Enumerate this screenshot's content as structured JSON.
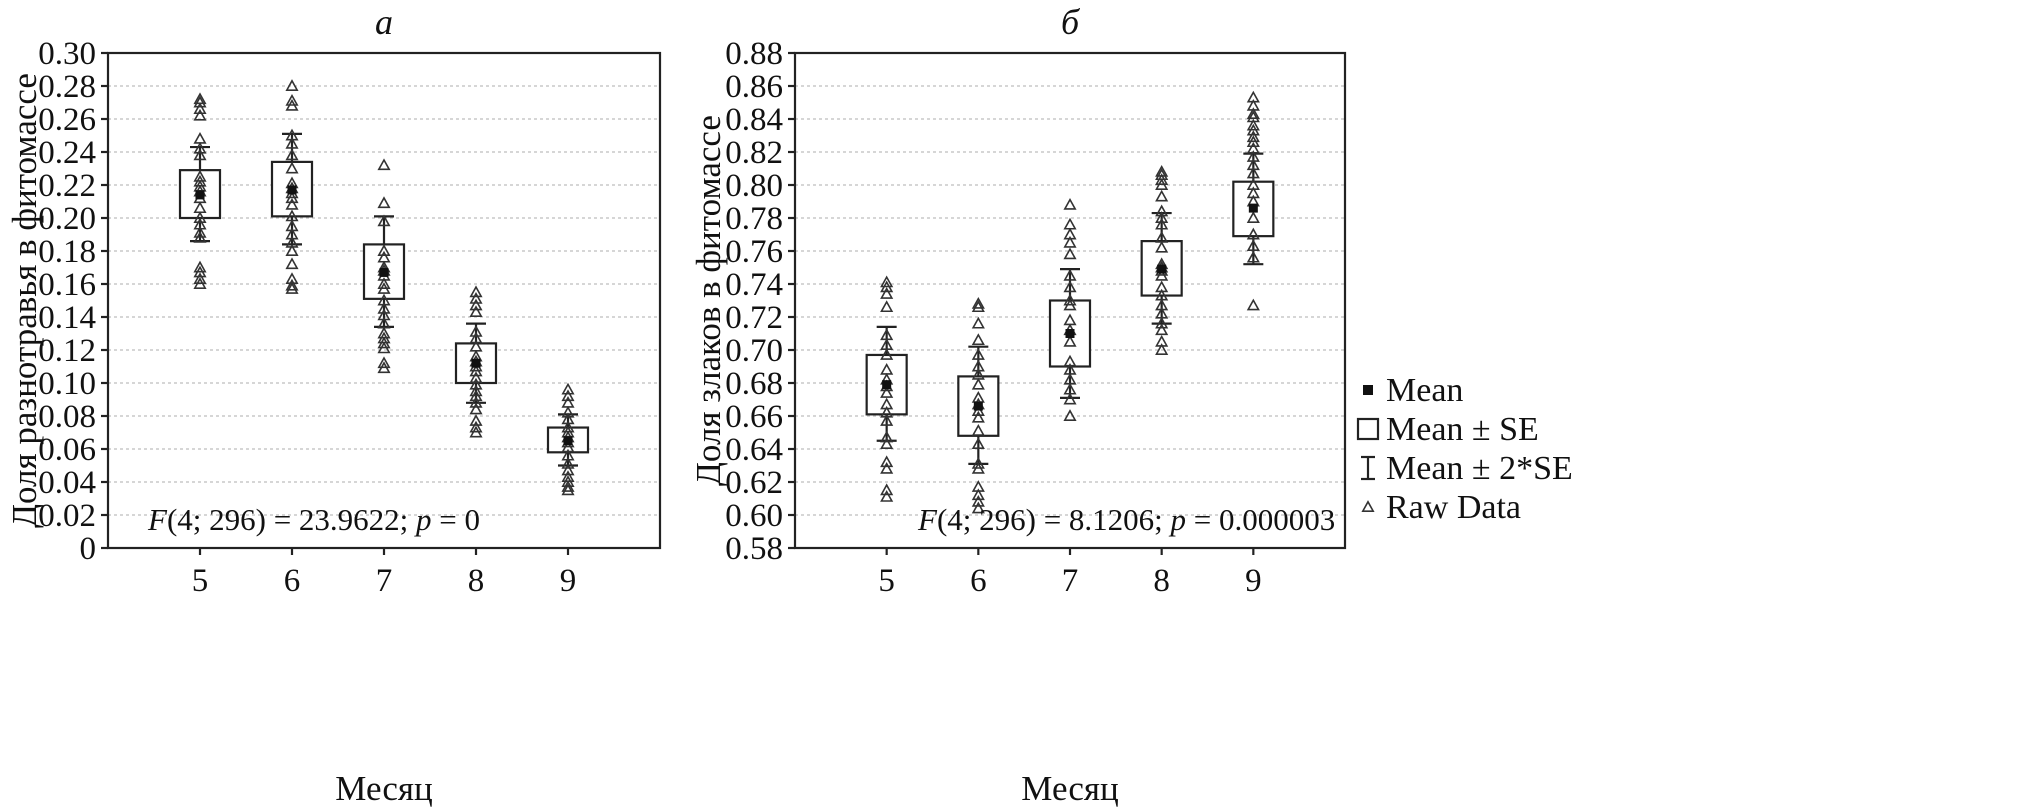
{
  "chart_data": [
    {
      "type": "boxplot",
      "panel_id": "a",
      "title": "а",
      "xlabel": "Месяц",
      "ylabel": "Доля разнотравья в фитомассе",
      "ylim": [
        0,
        0.3
      ],
      "xlim": [
        4,
        10
      ],
      "yticks": [
        0,
        0.02,
        0.04,
        0.06,
        0.08,
        0.1,
        0.12,
        0.14,
        0.16,
        0.18,
        0.2,
        0.22,
        0.24,
        0.26,
        0.28,
        0.3
      ],
      "ytick_labels": [
        "0",
        "0.02",
        "0.04",
        "0.06",
        "0.08",
        "0.10",
        "0.12",
        "0.14",
        "0.16",
        "0.18",
        "0.20",
        "0.22",
        "0.24",
        "0.26",
        "0.28",
        "0.30"
      ],
      "categories": [
        "5",
        "6",
        "7",
        "8",
        "9"
      ],
      "groups": [
        {
          "x": 5,
          "mean": 0.214,
          "se_lo": 0.2,
          "se_hi": 0.229,
          "se2_lo": 0.186,
          "se2_hi": 0.243,
          "raw": [
            0.272,
            0.27,
            0.266,
            0.262,
            0.248,
            0.242,
            0.238,
            0.225,
            0.222,
            0.219,
            0.216,
            0.212,
            0.206,
            0.2,
            0.196,
            0.191,
            0.188,
            0.17,
            0.167,
            0.163,
            0.16
          ]
        },
        {
          "x": 6,
          "mean": 0.217,
          "se_lo": 0.201,
          "se_hi": 0.234,
          "se2_lo": 0.184,
          "se2_hi": 0.251,
          "raw": [
            0.28,
            0.271,
            0.268,
            0.25,
            0.245,
            0.238,
            0.23,
            0.221,
            0.218,
            0.215,
            0.212,
            0.208,
            0.201,
            0.195,
            0.19,
            0.185,
            0.18,
            0.172,
            0.163,
            0.159,
            0.157
          ]
        },
        {
          "x": 7,
          "mean": 0.167,
          "se_lo": 0.151,
          "se_hi": 0.184,
          "se2_lo": 0.134,
          "se2_hi": 0.201,
          "raw": [
            0.232,
            0.209,
            0.198,
            0.18,
            0.176,
            0.17,
            0.168,
            0.165,
            0.16,
            0.157,
            0.15,
            0.145,
            0.141,
            0.136,
            0.13,
            0.127,
            0.124,
            0.121,
            0.112,
            0.109
          ]
        },
        {
          "x": 8,
          "mean": 0.112,
          "se_lo": 0.1,
          "se_hi": 0.124,
          "se2_lo": 0.088,
          "se2_hi": 0.136,
          "raw": [
            0.155,
            0.151,
            0.147,
            0.143,
            0.131,
            0.127,
            0.122,
            0.116,
            0.113,
            0.11,
            0.107,
            0.103,
            0.099,
            0.095,
            0.092,
            0.088,
            0.084,
            0.077,
            0.073,
            0.07
          ]
        },
        {
          "x": 9,
          "mean": 0.065,
          "se_lo": 0.058,
          "se_hi": 0.073,
          "se2_lo": 0.05,
          "se2_hi": 0.081,
          "raw": [
            0.096,
            0.092,
            0.088,
            0.082,
            0.078,
            0.073,
            0.07,
            0.067,
            0.064,
            0.061,
            0.056,
            0.051,
            0.047,
            0.043,
            0.04,
            0.037,
            0.035
          ]
        }
      ],
      "annotation": {
        "prefix": "F",
        "args": "(4; 296) = 23.9622; ",
        "pvar": "p",
        "pval": " = 0"
      }
    },
    {
      "type": "boxplot",
      "panel_id": "b",
      "title": "б",
      "xlabel": "Месяц",
      "ylabel": "Доля злаков в фитомассе",
      "ylim": [
        0.58,
        0.88
      ],
      "xlim": [
        4,
        10
      ],
      "yticks": [
        0.58,
        0.6,
        0.62,
        0.64,
        0.66,
        0.68,
        0.7,
        0.72,
        0.74,
        0.76,
        0.78,
        0.8,
        0.82,
        0.84,
        0.86,
        0.88
      ],
      "ytick_labels": [
        "0.58",
        "0.60",
        "0.62",
        "0.64",
        "0.66",
        "0.68",
        "0.70",
        "0.72",
        "0.74",
        "0.76",
        "0.78",
        "0.80",
        "0.82",
        "0.84",
        "0.86",
        "0.88"
      ],
      "categories": [
        "5",
        "6",
        "7",
        "8",
        "9"
      ],
      "groups": [
        {
          "x": 5,
          "mean": 0.679,
          "se_lo": 0.661,
          "se_hi": 0.697,
          "se2_lo": 0.645,
          "se2_hi": 0.714,
          "raw": [
            0.741,
            0.738,
            0.734,
            0.726,
            0.709,
            0.703,
            0.697,
            0.688,
            0.682,
            0.678,
            0.674,
            0.667,
            0.662,
            0.657,
            0.647,
            0.643,
            0.632,
            0.628,
            0.615,
            0.611
          ]
        },
        {
          "x": 6,
          "mean": 0.666,
          "se_lo": 0.648,
          "se_hi": 0.684,
          "se2_lo": 0.631,
          "se2_hi": 0.702,
          "raw": [
            0.728,
            0.726,
            0.716,
            0.706,
            0.697,
            0.69,
            0.685,
            0.679,
            0.671,
            0.667,
            0.663,
            0.659,
            0.651,
            0.643,
            0.631,
            0.628,
            0.617,
            0.612,
            0.608,
            0.604
          ]
        },
        {
          "x": 7,
          "mean": 0.71,
          "se_lo": 0.69,
          "se_hi": 0.73,
          "se2_lo": 0.671,
          "se2_hi": 0.749,
          "raw": [
            0.788,
            0.776,
            0.77,
            0.765,
            0.758,
            0.745,
            0.738,
            0.73,
            0.727,
            0.718,
            0.712,
            0.705,
            0.693,
            0.688,
            0.682,
            0.676,
            0.67,
            0.66
          ]
        },
        {
          "x": 8,
          "mean": 0.749,
          "se_lo": 0.733,
          "se_hi": 0.766,
          "se2_lo": 0.716,
          "se2_hi": 0.783,
          "raw": [
            0.808,
            0.806,
            0.803,
            0.8,
            0.793,
            0.784,
            0.78,
            0.776,
            0.768,
            0.762,
            0.752,
            0.75,
            0.748,
            0.745,
            0.738,
            0.733,
            0.727,
            0.722,
            0.716,
            0.712,
            0.705,
            0.7
          ]
        },
        {
          "x": 9,
          "mean": 0.786,
          "se_lo": 0.769,
          "se_hi": 0.802,
          "se2_lo": 0.752,
          "se2_hi": 0.819,
          "raw": [
            0.853,
            0.848,
            0.843,
            0.841,
            0.836,
            0.833,
            0.829,
            0.826,
            0.822,
            0.817,
            0.812,
            0.807,
            0.8,
            0.795,
            0.79,
            0.78,
            0.77,
            0.763,
            0.756,
            0.727
          ]
        }
      ],
      "annotation": {
        "prefix": "F",
        "args": "(4; 296) = 8.1206; ",
        "pvar": "p",
        "pval": " = 0.000003"
      }
    }
  ],
  "legend": {
    "items": [
      {
        "symbol": "mean-square",
        "label": "Mean"
      },
      {
        "symbol": "box",
        "label": "Mean ± SE"
      },
      {
        "symbol": "whisker",
        "label": "Mean ± 2*SE"
      },
      {
        "symbol": "triangle",
        "label": "Raw Data"
      }
    ]
  }
}
